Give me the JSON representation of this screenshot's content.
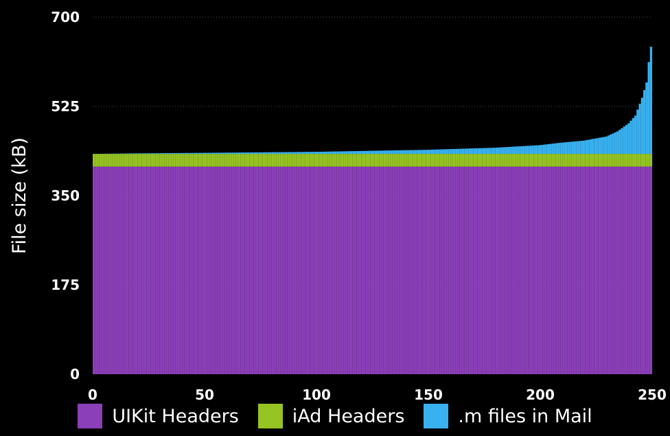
{
  "chart_data": {
    "type": "bar",
    "stacked": true,
    "title": "",
    "xlabel": "",
    "ylabel": "File size (kB)",
    "xlim": [
      0,
      250
    ],
    "ylim": [
      0,
      700
    ],
    "yticks": [
      0,
      175,
      350,
      525,
      700
    ],
    "xticks": [
      0,
      50,
      100,
      150,
      200,
      250
    ],
    "grid": "horizontal dotted",
    "legend_position": "bottom",
    "n_bars": 250,
    "series": [
      {
        "name": "UIKit Headers",
        "color": "#8b3fb8",
        "value_constant": 407
      },
      {
        "name": "iAd Headers",
        "color": "#96c423",
        "value_constant": 25
      },
      {
        "name": ".m files in Mail",
        "color": "#39b1f0",
        "profile_x": [
          1,
          20,
          50,
          100,
          150,
          180,
          200,
          210,
          220,
          230,
          235,
          240,
          243,
          246,
          248,
          249,
          250
        ],
        "profile_y": [
          0,
          1,
          2,
          4,
          8,
          12,
          17,
          22,
          26,
          34,
          44,
          60,
          75,
          110,
          140,
          180,
          210
        ]
      }
    ]
  }
}
